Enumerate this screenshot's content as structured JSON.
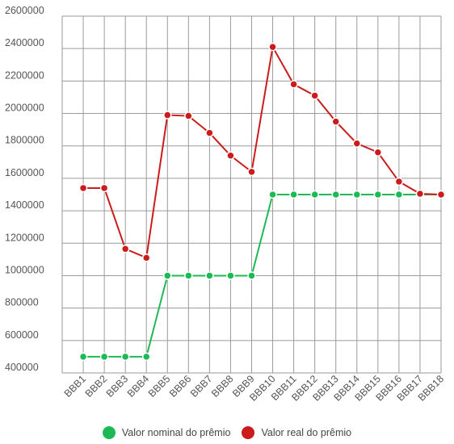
{
  "chart_data": {
    "type": "line",
    "categories": [
      "BBB1",
      "BBB2",
      "BBB3",
      "BBB4",
      "BBB5",
      "BBB6",
      "BBB7",
      "BBB8",
      "BBB9",
      "BBB10",
      "BBB11",
      "BBB12",
      "BBB13",
      "BBB14",
      "BBB15",
      "BBB16",
      "BBB17",
      "BBB18"
    ],
    "ylim": [
      400000,
      2600000
    ],
    "yticks": [
      400000,
      600000,
      800000,
      1000000,
      1200000,
      1400000,
      1600000,
      1800000,
      2000000,
      2200000,
      2400000,
      2600000
    ],
    "ytick_labels": [
      "400000",
      "600000",
      "800000",
      "1000000",
      "1200000",
      "1400000",
      "1600000",
      "1800000",
      "2000000",
      "2200000",
      "2400000",
      "2600000"
    ],
    "grid": true,
    "legend_position": "bottom",
    "series": [
      {
        "name": "Valor nominal do prêmio",
        "color": "#1db954",
        "values": [
          500000,
          500000,
          500000,
          500000,
          1000000,
          1000000,
          1000000,
          1000000,
          1000000,
          1500000,
          1500000,
          1500000,
          1500000,
          1500000,
          1500000,
          1500000,
          1500000,
          1500000
        ]
      },
      {
        "name": "Valor real do prêmio",
        "color": "#cc1b1b",
        "values": [
          1540000,
          1540000,
          1165000,
          1110000,
          1990000,
          1985000,
          1880000,
          1740000,
          1640000,
          2410000,
          2180000,
          2110000,
          1950000,
          1815000,
          1760000,
          1580000,
          1505000,
          1500000
        ]
      }
    ]
  }
}
